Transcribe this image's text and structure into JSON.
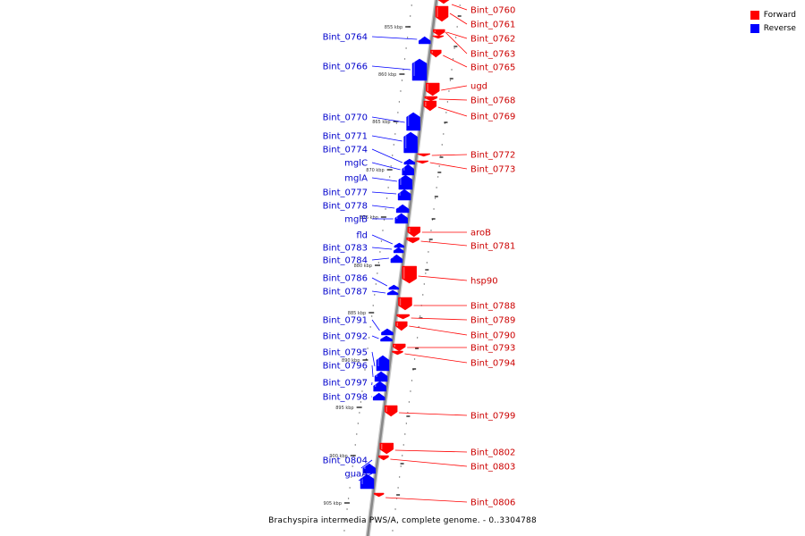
{
  "caption": "Brachyspira intermedia PWS/A, complete genome. - 0..3304788",
  "legend": {
    "forward_label": "Forward",
    "reverse_label": "Reverse"
  },
  "colors": {
    "forward": "#ff0000",
    "reverse": "#0000ff",
    "forward_label": "#cc0000",
    "reverse_label": "#0000cc",
    "axis": "#888888"
  },
  "kbp_ticks": [
    "855 kbp",
    "860 kbp",
    "865 kbp",
    "870 kbp",
    "875 kbp",
    "880 kbp",
    "885 kbp",
    "890 kbp",
    "895 kbp",
    "900 kbp",
    "905 kbp"
  ],
  "forward_genes": [
    "Bint_0760",
    "Bint_0761",
    "Bint_0762",
    "Bint_0763",
    "Bint_0765",
    "ugd",
    "Bint_0768",
    "Bint_0769",
    "Bint_0772",
    "Bint_0773",
    "aroB",
    "Bint_0781",
    "hsp90",
    "Bint_0788",
    "Bint_0789",
    "Bint_0790",
    "Bint_0793",
    "Bint_0794",
    "Bint_0799",
    "Bint_0802",
    "Bint_0803",
    "Bint_0806"
  ],
  "reverse_genes": [
    "Bint_0764",
    "Bint_0766",
    "Bint_0770",
    "Bint_0771",
    "Bint_0774",
    "mglC",
    "mglA",
    "Bint_0777",
    "Bint_0778",
    "mglB",
    "fld",
    "Bint_0783",
    "Bint_0784",
    "Bint_0786",
    "Bint_0787",
    "Bint_0791",
    "Bint_0792",
    "Bint_0795",
    "Bint_0796",
    "Bint_0797",
    "Bint_0798",
    "Bint_0804",
    "guaA"
  ]
}
